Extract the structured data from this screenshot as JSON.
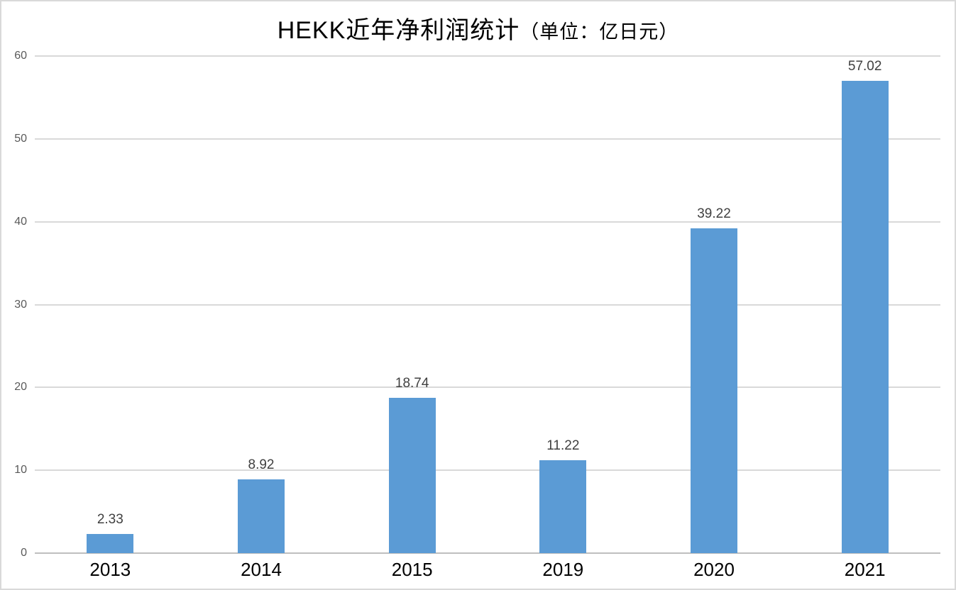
{
  "chart_data": {
    "type": "bar",
    "title": "HEKK近年净利润统计（单位：亿日元）",
    "title_main": "HEKK近年净利润统计",
    "title_unit": "（单位：亿日元）",
    "categories": [
      "2013",
      "2014",
      "2015",
      "2019",
      "2020",
      "2021"
    ],
    "values": [
      2.33,
      8.92,
      18.74,
      11.22,
      39.22,
      57.02
    ],
    "data_labels": [
      "2.33",
      "8.92",
      "18.74",
      "11.22",
      "39.22",
      "57.02"
    ],
    "xlabel": "",
    "ylabel": "",
    "ylim": [
      0,
      60
    ],
    "yticks": [
      0,
      10,
      20,
      30,
      40,
      50,
      60
    ],
    "grid": true,
    "legend": false,
    "colors": {
      "bar": "#5b9bd5",
      "gridline": "#d9d9d9",
      "axis_line": "#bfbfbf",
      "ytick_label": "#595959",
      "value_label": "#404040",
      "xtick_label": "#000000",
      "background": "#ffffff",
      "border": "#d9d9d9"
    }
  }
}
